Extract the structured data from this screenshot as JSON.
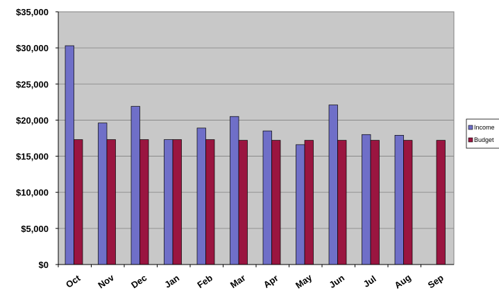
{
  "chart_data": {
    "type": "bar",
    "title": "",
    "xlabel": "",
    "ylabel": "",
    "categories": [
      "Oct",
      "Nov",
      "Dec",
      "Jan",
      "Feb",
      "Mar",
      "Apr",
      "May",
      "Jun",
      "Jul",
      "Aug",
      "Sep"
    ],
    "series": [
      {
        "name": "Income",
        "color": "#6f6fc8",
        "values": [
          30300,
          19600,
          21900,
          17300,
          18900,
          20500,
          18500,
          16600,
          22100,
          18000,
          17900,
          null
        ]
      },
      {
        "name": "Budget",
        "color": "#9a1540",
        "values": [
          17300,
          17300,
          17300,
          17300,
          17300,
          17200,
          17200,
          17200,
          17200,
          17200,
          17200,
          17200
        ]
      }
    ],
    "ylim": [
      0,
      35000
    ],
    "yticks": [
      "$0",
      "$5,000",
      "$10,000",
      "$15,000",
      "$20,000",
      "$25,000",
      "$30,000",
      "$35,000"
    ],
    "grid": true,
    "legend_position": "right",
    "plot_background": "#c8c8c8"
  }
}
